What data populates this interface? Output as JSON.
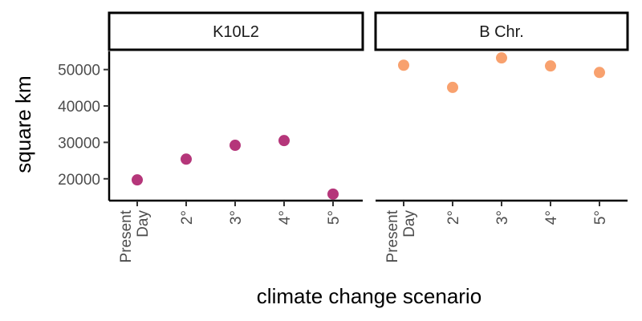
{
  "chart_data": {
    "type": "scatter",
    "xlabel": "climate change scenario",
    "ylabel": "square km",
    "categories": [
      [
        "Present",
        "Day"
      ],
      [
        "2°"
      ],
      [
        "3°"
      ],
      [
        "4°"
      ],
      [
        "5°"
      ]
    ],
    "ylim": [
      14000,
      55000
    ],
    "yticks": [
      {
        "value": 20000,
        "label": "20000"
      },
      {
        "value": 30000,
        "label": "30000"
      },
      {
        "value": 40000,
        "label": "40000"
      },
      {
        "value": 50000,
        "label": "50000"
      }
    ],
    "grid": false,
    "legend": "none",
    "facets": [
      {
        "label": "K10L2",
        "color": "#b5367a",
        "values": [
          19700,
          25400,
          29200,
          30500,
          15800
        ]
      },
      {
        "label": "B Chr.",
        "color": "#f8a16e",
        "values": [
          51200,
          45100,
          53200,
          51000,
          49200
        ]
      }
    ]
  }
}
